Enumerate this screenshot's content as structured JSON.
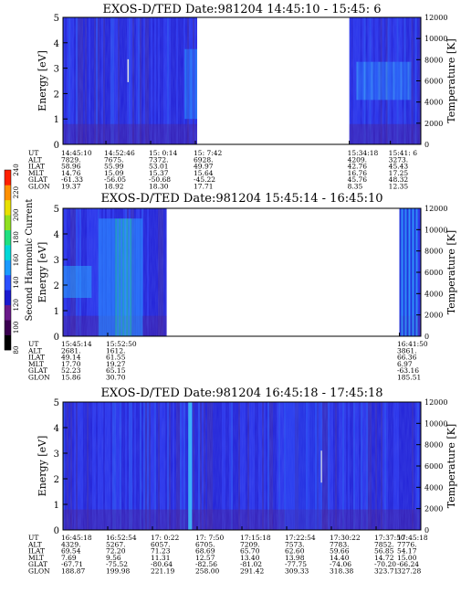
{
  "colorbar": {
    "label": "Second Harmonic Current",
    "ticks": [
      80,
      100,
      120,
      140,
      160,
      180,
      200,
      220,
      240
    ],
    "colors": [
      "#000000",
      "#3a0050",
      "#6a1a8a",
      "#1a1ad0",
      "#2a50ff",
      "#1a9aff",
      "#00d8d8",
      "#20e080",
      "#90e020",
      "#e8e000",
      "#ff9000",
      "#ff2000"
    ]
  },
  "chart_data": [
    {
      "type": "heatmap",
      "title": "EXOS-D/TED   Date:981204   14:45:10 - 15:45: 6",
      "ylabel": "Energy [eV]",
      "y2label": "Temperature [K]",
      "ylim": [
        0,
        5
      ],
      "y2lim": [
        0,
        12000
      ],
      "yticks": [
        0,
        1,
        2,
        3,
        4,
        5
      ],
      "y2ticks": [
        0,
        2000,
        4000,
        6000,
        8000,
        10000,
        12000
      ],
      "coverage": [
        [
          0,
          0.375
        ],
        [
          0.8,
          1
        ]
      ],
      "gap": [
        0.375,
        0.8
      ],
      "columns": [
        {
          "frac": 0.0,
          "UT": "14:45:10",
          "ALT": "7829.",
          "ILAT": "58.96",
          "MLT": "14.76",
          "GLAT": "-61.33",
          "GLON": "19.37"
        },
        {
          "frac": 0.12,
          "UT": "14:52:46",
          "ALT": "7675.",
          "ILAT": "55.99",
          "MLT": "15.09",
          "GLAT": "-56.05",
          "GLON": "18.92"
        },
        {
          "frac": 0.245,
          "UT": "15: 0:14",
          "ALT": "7372.",
          "ILAT": "53.01",
          "MLT": "15.37",
          "GLAT": "-50.68",
          "GLON": "18.30"
        },
        {
          "frac": 0.37,
          "UT": "15: 7:42",
          "ALT": "6928.",
          "ILAT": "49.97",
          "MLT": "15.64",
          "GLAT": "-45.22",
          "GLON": "17.71"
        },
        {
          "frac": 0.8,
          "UT": "15:34:18",
          "ALT": "4209.",
          "ILAT": "42.76",
          "MLT": "16.76",
          "GLAT": "45.76",
          "GLON": "8.35"
        },
        {
          "frac": 0.915,
          "UT": "15:41: 6",
          "ALT": "3273.",
          "ILAT": "45.43",
          "MLT": "17.25",
          "GLAT": "48.32",
          "GLON": "12.35"
        }
      ]
    },
    {
      "type": "heatmap",
      "title": "EXOS-D/TED   Date:981204   15:45:14 - 16:45:10",
      "ylabel": "Energy [eV]",
      "y2label": "Temperature [K]",
      "ylim": [
        0,
        5
      ],
      "y2lim": [
        0,
        12000
      ],
      "yticks": [
        0,
        1,
        2,
        3,
        4,
        5
      ],
      "y2ticks": [
        0,
        2000,
        4000,
        6000,
        8000,
        10000,
        12000
      ],
      "coverage": [
        [
          0,
          0.29
        ],
        [
          0.94,
          1
        ]
      ],
      "gap": [
        0.29,
        0.94
      ],
      "columns": [
        {
          "frac": 0.0,
          "UT": "15:45:14",
          "ALT": "2681.",
          "ILAT": "49.14",
          "MLT": "17.70",
          "GLAT": "52.23",
          "GLON": "15.86"
        },
        {
          "frac": 0.125,
          "UT": "15:52:50",
          "ALT": "1612.",
          "ILAT": "61.55",
          "MLT": "19.27",
          "GLAT": "65.15",
          "GLON": "30.70"
        },
        {
          "frac": 0.94,
          "UT": "16:41:50",
          "ALT": "3861.",
          "ILAT": "66.36",
          "MLT": "6.97",
          "GLAT": "-63.16",
          "GLON": "185.51"
        }
      ]
    },
    {
      "type": "heatmap",
      "title": "EXOS-D/TED   Date:981204   16:45:18 - 17:45:18",
      "ylabel": "Energy [eV]",
      "y2label": "Temperature [K]",
      "ylim": [
        0,
        5
      ],
      "y2lim": [
        0,
        12000
      ],
      "yticks": [
        0,
        1,
        2,
        3,
        4,
        5
      ],
      "y2ticks": [
        0,
        2000,
        4000,
        6000,
        8000,
        10000,
        12000
      ],
      "coverage": [
        [
          0,
          1
        ]
      ],
      "gap": null,
      "columns": [
        {
          "frac": 0.0,
          "UT": "16:45:18",
          "ALT": "4329.",
          "ILAT": "69.54",
          "MLT": "7.69",
          "GLAT": "-67.71",
          "GLON": "188.87"
        },
        {
          "frac": 0.125,
          "UT": "16:52:54",
          "ALT": "5267.",
          "ILAT": "72.20",
          "MLT": "9.56",
          "GLAT": "-75.52",
          "GLON": "199.98"
        },
        {
          "frac": 0.25,
          "UT": "17: 0:22",
          "ALT": "6057.",
          "ILAT": "71.23",
          "MLT": "11.31",
          "GLAT": "-80.64",
          "GLON": "221.19"
        },
        {
          "frac": 0.375,
          "UT": "17: 7:50",
          "ALT": "6705.",
          "ILAT": "68.69",
          "MLT": "12.57",
          "GLAT": "-82.56",
          "GLON": "258.00"
        },
        {
          "frac": 0.5,
          "UT": "17:15:18",
          "ALT": "7209.",
          "ILAT": "65.70",
          "MLT": "13.40",
          "GLAT": "-81.02",
          "GLON": "291.42"
        },
        {
          "frac": 0.625,
          "UT": "17:22:54",
          "ALT": "7573.",
          "ILAT": "62.60",
          "MLT": "13.98",
          "GLAT": "-77.75",
          "GLON": "309.33"
        },
        {
          "frac": 0.75,
          "UT": "17:30:22",
          "ALT": "7783.",
          "ILAT": "59.66",
          "MLT": "14.40",
          "GLAT": "-74.06",
          "GLON": "318.38"
        },
        {
          "frac": 0.875,
          "UT": "17:37:50",
          "ALT": "7852.",
          "ILAT": "56.85",
          "MLT": "14.72",
          "GLAT": "-70.20",
          "GLON": "323.71"
        },
        {
          "frac": 1.0,
          "UT": "17:45:18",
          "ALT": "7776.",
          "ILAT": "54.17",
          "MLT": "15.00",
          "GLAT": "-66.24",
          "GLON": "327.28"
        }
      ]
    }
  ],
  "row_labels": [
    "UT",
    "ALT",
    "ILAT",
    "MLT",
    "GLAT",
    "GLON"
  ]
}
